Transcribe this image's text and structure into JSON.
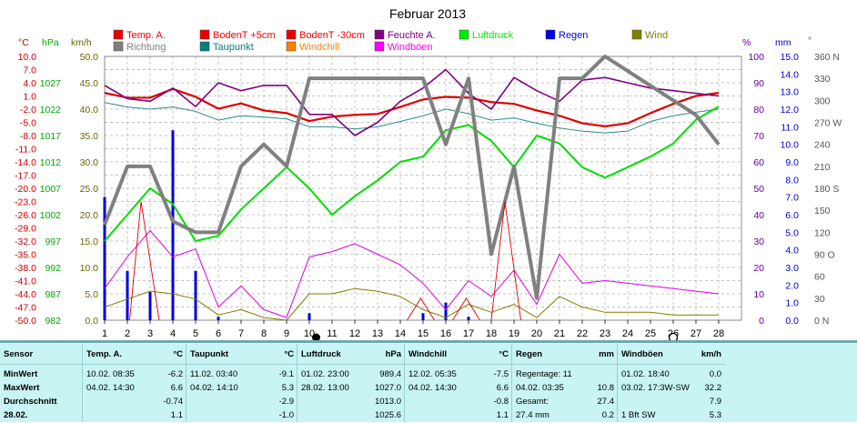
{
  "chart_data": {
    "type": "line",
    "title": "Februar 2013",
    "x": [
      1,
      2,
      3,
      4,
      5,
      6,
      7,
      8,
      9,
      10,
      11,
      12,
      13,
      14,
      15,
      16,
      17,
      18,
      19,
      20,
      21,
      22,
      23,
      24,
      25,
      26,
      27,
      28
    ],
    "x_ticks": [
      "1",
      "2",
      "3",
      "4",
      "5",
      "6",
      "7",
      "8",
      "9",
      "10",
      "11",
      "12",
      "13",
      "14",
      "15",
      "16",
      "17",
      "18",
      "19",
      "20",
      "21",
      "22",
      "23",
      "24",
      "25",
      "26",
      "27",
      "28"
    ],
    "axes": {
      "temp": {
        "unit": "°C",
        "color": "#cc0000",
        "ylim": [
          -50,
          10
        ],
        "ticks": [
          "10.0",
          "7.0",
          "4.0",
          "1.0",
          "-2.0",
          "-5.0",
          "-8.0",
          "-11.0",
          "-14.0",
          "-17.0",
          "-20.0",
          "-23.0",
          "-26.0",
          "-29.0",
          "-32.0",
          "-35.0",
          "-38.0",
          "-41.0",
          "-44.0",
          "-47.0",
          "-50.0"
        ]
      },
      "pressure": {
        "unit": "hPa",
        "color": "#00aa00",
        "ylim": [
          982,
          1032
        ],
        "ticks": [
          "1027",
          "1022",
          "1017",
          "1012",
          "1007",
          "1002",
          "997",
          "992",
          "987",
          "982"
        ]
      },
      "wind": {
        "unit": "km/h",
        "color": "#666600",
        "ylim": [
          0,
          50
        ],
        "ticks": [
          "50.0",
          "45.0",
          "40.0",
          "35.0",
          "30.0",
          "25.0",
          "20.0",
          "15.0",
          "10.0",
          "5.0",
          "0.0"
        ]
      },
      "humidity": {
        "unit": "%",
        "color": "#660099",
        "ylim": [
          0,
          100
        ],
        "ticks": [
          "100",
          "90",
          "80",
          "70",
          "60",
          "50",
          "40",
          "30",
          "20",
          "10",
          "0"
        ]
      },
      "rain": {
        "unit": "mm",
        "color": "#0000cc",
        "ylim": [
          0,
          15
        ],
        "ticks": [
          "15.0",
          "14.0",
          "13.0",
          "12.0",
          "11.0",
          "10.0",
          "9.0",
          "8.0",
          "7.0",
          "6.0",
          "5.0",
          "4.0",
          "3.0",
          "2.0",
          "1.0",
          "0.0"
        ]
      },
      "direction": {
        "unit": "°",
        "color": "#555555",
        "ticks": [
          "360 N",
          "330",
          "300",
          "270 W",
          "240",
          "210",
          "180 S",
          "150",
          "120",
          "90 O",
          "60",
          "30",
          "0 N"
        ]
      }
    },
    "legend": [
      {
        "label": "Temp. A.",
        "color": "#ee0000"
      },
      {
        "label": "BodenT +5cm",
        "color": "#ee0000"
      },
      {
        "label": "BodenT -30cm",
        "color": "#ee0000"
      },
      {
        "label": "Feuchte A.",
        "color": "#800080"
      },
      {
        "label": "Luftdruck",
        "color": "#00ee00"
      },
      {
        "label": "Regen",
        "color": "#0000ee"
      },
      {
        "label": "Wind",
        "color": "#808000"
      },
      {
        "label": "Richtung",
        "color": "#808080"
      },
      {
        "label": "Taupunkt",
        "color": "#008080"
      },
      {
        "label": "Windchill",
        "color": "#ff8000"
      },
      {
        "label": "Windböen",
        "color": "#ff00ff"
      }
    ],
    "series": [
      {
        "name": "Temp. A.",
        "axis": "temp",
        "color": "#dd0000",
        "width": 2.2,
        "values": [
          1.7,
          0.6,
          0.6,
          2.6,
          0.8,
          -1.9,
          -0.7,
          -2.3,
          -2.9,
          -4.7,
          -3.7,
          -3.3,
          -3.1,
          -1.5,
          0.2,
          0.8,
          0.6,
          -0.4,
          -0.8,
          -2.3,
          -3.5,
          -5.2,
          -5.9,
          -5.2,
          -2.9,
          -0.8,
          1.0,
          1.7
        ]
      },
      {
        "name": "Taupunkt",
        "axis": "temp",
        "color": "#2e8b8b",
        "width": 1,
        "values": [
          -0.5,
          -1.5,
          -2,
          -1.5,
          -2.5,
          -4.5,
          -3.5,
          -3.8,
          -4.2,
          -6,
          -6,
          -6.5,
          -6,
          -4.8,
          -3.5,
          -2,
          -3,
          -4.5,
          -4,
          -5.2,
          -6.3,
          -7,
          -7.4,
          -7,
          -4.8,
          -3.5,
          -2.7,
          -2
        ]
      },
      {
        "name": "Feuchte A.",
        "axis": "humidity",
        "color": "#800080",
        "width": 1.6,
        "values": [
          89,
          84,
          83,
          88,
          81,
          90,
          87,
          89,
          89,
          78,
          78,
          70,
          75,
          83,
          88,
          95,
          86,
          80,
          92,
          87,
          83,
          91,
          92,
          90,
          88,
          87,
          86,
          85
        ]
      },
      {
        "name": "Luftdruck",
        "axis": "pressure",
        "color": "#00dd00",
        "width": 2,
        "values": [
          997,
          1002,
          1007,
          1004,
          997,
          998,
          1003,
          1007,
          1011,
          1007,
          1002,
          1005.5,
          1008.5,
          1012,
          1013,
          1018,
          1019,
          1016,
          1011,
          1017,
          1015.5,
          1011,
          1009,
          1011,
          1013,
          1015.5,
          1020,
          1022.5
        ]
      },
      {
        "name": "Richtung",
        "axis": "direction",
        "color": "#808080",
        "width": 4,
        "values": [
          130,
          210,
          210,
          135,
          120,
          120,
          210,
          240,
          210,
          330,
          330,
          330,
          330,
          330,
          330,
          240,
          330,
          90,
          210,
          30,
          330,
          330,
          360,
          340,
          320,
          300,
          280,
          240
        ]
      },
      {
        "name": "Windböen",
        "axis": "wind",
        "color": "#dd00dd",
        "width": 1,
        "values": [
          6,
          12,
          17,
          12,
          13.5,
          2.5,
          6.5,
          2,
          0.5,
          12,
          13,
          14.5,
          12.5,
          10.5,
          7,
          2,
          7.5,
          4.5,
          9.5,
          3,
          12.5,
          7,
          7.5,
          7,
          6.5,
          6,
          5.5,
          5
        ]
      },
      {
        "name": "Wind",
        "axis": "wind",
        "color": "#808000",
        "width": 1,
        "values": [
          2.5,
          4,
          5.5,
          5,
          4,
          1,
          2,
          0.5,
          0,
          5,
          5,
          6,
          5.5,
          4.5,
          2,
          0.5,
          3,
          1.5,
          3,
          0.5,
          4.5,
          2.5,
          1.5,
          1.5,
          1.5,
          1,
          1,
          1
        ]
      },
      {
        "name": "Windchill",
        "axis": "temp",
        "color": "#dd0000",
        "width": 0.9,
        "values": [
          -50,
          -50,
          -50,
          -50,
          -50,
          -50,
          -50,
          -50,
          -50,
          -50,
          -50,
          -50,
          -50,
          -50,
          -50,
          -50,
          -50,
          -50,
          -50,
          -50,
          -50,
          -50,
          -50,
          -50,
          -50,
          -50,
          -50,
          -50
        ],
        "spikes": [
          {
            "x": 2.6,
            "x_left": 2.1,
            "x_right": 3.4,
            "y": -23
          },
          {
            "x": 14.9,
            "x_left": 14.3,
            "x_right": 15.5,
            "y": -45
          },
          {
            "x": 16.9,
            "x_left": 16.3,
            "x_right": 17.5,
            "y": -45
          },
          {
            "x": 18.6,
            "x_left": 18.0,
            "x_right": 19.3,
            "y": -23
          }
        ]
      }
    ],
    "rain_bars": [
      {
        "x": 1,
        "value": 7.0
      },
      {
        "x": 2,
        "value": 2.8
      },
      {
        "x": 3,
        "value": 1.6
      },
      {
        "x": 4,
        "value": 10.8
      },
      {
        "x": 5,
        "value": 2.8
      },
      {
        "x": 6,
        "value": 0.2
      },
      {
        "x": 10,
        "value": 0.4
      },
      {
        "x": 15,
        "value": 0.4
      },
      {
        "x": 16,
        "value": 1.0
      },
      {
        "x": 17,
        "value": 0.2
      }
    ],
    "markers": [
      {
        "x": 10.3,
        "shape": "filled-circle"
      },
      {
        "x": 26,
        "shape": "open-circle"
      }
    ],
    "grid": true
  },
  "stats": {
    "columns": [
      {
        "name": "Sensor",
        "unit": "",
        "rows": [
          "MinWert",
          "MaxWert",
          "Durchschnitt",
          "28.02."
        ]
      },
      {
        "name": "Temp. A.",
        "unit": "°C",
        "rows": [
          [
            "10.02. 08:35",
            "-6.2"
          ],
          [
            "04.02. 14:30",
            "6.6"
          ],
          [
            "",
            "-0.74"
          ],
          [
            "",
            "1.1"
          ]
        ]
      },
      {
        "name": "Taupunkt",
        "unit": "°C",
        "rows": [
          [
            "11.02. 03:40",
            "-9.1"
          ],
          [
            "04.02. 14:10",
            "5.3"
          ],
          [
            "",
            "-2.9"
          ],
          [
            "",
            "-1.0"
          ]
        ]
      },
      {
        "name": "Luftdruck",
        "unit": "hPa",
        "rows": [
          [
            "01.02. 23:00",
            "989.4"
          ],
          [
            "28.02. 13:00",
            "1027.0"
          ],
          [
            "",
            "1013.0"
          ],
          [
            "",
            "1025.6"
          ]
        ]
      },
      {
        "name": "Windchill",
        "unit": "°C",
        "rows": [
          [
            "12.02. 05:35",
            "-7.5"
          ],
          [
            "04.02. 14:30",
            "6.6"
          ],
          [
            "",
            "-0.8"
          ],
          [
            "",
            "1.1"
          ]
        ]
      },
      {
        "name": "Regen",
        "unit": "mm",
        "rows": [
          [
            "Regentage: 11",
            ""
          ],
          [
            "04.02. 03:35",
            "10.8"
          ],
          [
            "Gesamt:",
            "27.4"
          ],
          [
            "27.4 mm",
            "0.2"
          ]
        ]
      },
      {
        "name": "Windböen",
        "unit": "km/h",
        "rows": [
          [
            "01.02. 18:40",
            "0.0"
          ],
          [
            "03.02. 17:3W-SW",
            "32.2"
          ],
          [
            "",
            "7.9"
          ],
          [
            "1 Bft SW",
            "5.3"
          ]
        ]
      }
    ]
  }
}
